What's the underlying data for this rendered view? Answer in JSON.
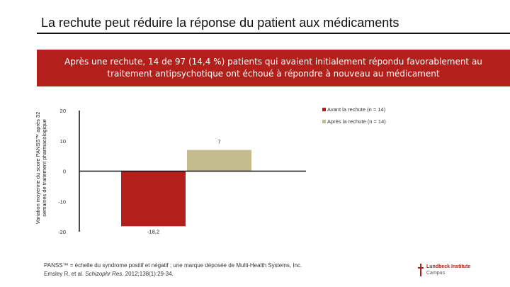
{
  "slide": {
    "title": "La rechute peut réduire la réponse du patient aux médicaments",
    "banner": "Après une rechute, 14 de 97 (14,4 %) patients qui avaient initialement répondu favorablement au traitement antipsychotique ont échoué à répondre à nouveau au médicament"
  },
  "chart_data": {
    "type": "bar",
    "ylabel": "Variation moyenne du score PANSS™ après 32 semaines de traitement pharmacologique",
    "ylim": [
      -20,
      20
    ],
    "yticks": [
      20,
      10,
      0,
      -10,
      -20
    ],
    "series": [
      {
        "name": "Avant la rechute (n = 14)",
        "value": -18.2,
        "label": "-18,2",
        "color": "#b31f1a"
      },
      {
        "name": "Après la rechute (n = 14)",
        "value": 7,
        "label": "7",
        "color": "#c4bc8e"
      }
    ]
  },
  "footnote": {
    "line1": "PANSS™ = échelle du syndrome positif et négatif ; une marque déposée de Multi-Health Systems, Inc.",
    "line2_prefix": "Emsley R, et al. ",
    "line2_journal": "Schizophr Res",
    "line2_suffix": ". 2012;138(1):29-34."
  },
  "logo": {
    "brand": "Lundbeck Institute",
    "sub": "Campus"
  }
}
